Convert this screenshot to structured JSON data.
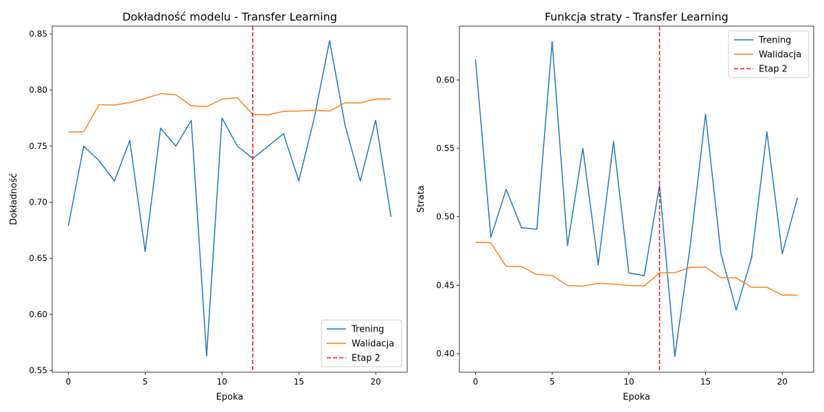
{
  "chart_data": [
    {
      "type": "line",
      "title": "Dokładność modelu - Transfer Learning",
      "xlabel": "Epoka",
      "ylabel": "Dokładność",
      "xlim": [
        -1.05,
        22.05
      ],
      "ylim": [
        0.5485,
        0.857
      ],
      "xticks": [
        0,
        5,
        10,
        15,
        20
      ],
      "yticks": [
        0.55,
        0.6,
        0.65,
        0.7,
        0.75,
        0.8,
        0.85
      ],
      "ytick_labels": [
        "0.55",
        "0.60",
        "0.65",
        "0.70",
        "0.75",
        "0.80",
        "0.85"
      ],
      "legend_position": "bottom-right",
      "x": [
        0,
        1,
        2,
        3,
        4,
        5,
        6,
        7,
        8,
        9,
        10,
        11,
        12,
        13,
        14,
        15,
        16,
        17,
        18,
        19,
        20,
        21
      ],
      "series": [
        {
          "name": "Trening",
          "color": "#1f77b4",
          "values": [
            0.679,
            0.75,
            0.737,
            0.719,
            0.755,
            0.656,
            0.766,
            0.75,
            0.773,
            0.563,
            0.775,
            0.75,
            0.739,
            0.75,
            0.761,
            0.719,
            0.775,
            0.844,
            0.769,
            0.719,
            0.773,
            0.687
          ]
        },
        {
          "name": "Walidacja",
          "color": "#ff7f0e",
          "values": [
            0.7625,
            0.7628,
            0.787,
            0.7866,
            0.7888,
            0.7925,
            0.7968,
            0.7958,
            0.786,
            0.7852,
            0.7918,
            0.7932,
            0.7782,
            0.7778,
            0.781,
            0.7813,
            0.782,
            0.7813,
            0.7885,
            0.7885,
            0.792,
            0.792
          ]
        }
      ],
      "vline": {
        "name": "Etap 2",
        "x": 12,
        "color": "#e41a1c",
        "style": "dashed"
      }
    },
    {
      "type": "line",
      "title": "Funkcja straty - Transfer Learning",
      "xlabel": "Epoka",
      "ylabel": "Strata",
      "xlim": [
        -1.05,
        22.05
      ],
      "ylim": [
        0.3865,
        0.6393
      ],
      "xticks": [
        0,
        5,
        10,
        15,
        20
      ],
      "yticks": [
        0.4,
        0.45,
        0.5,
        0.55,
        0.6
      ],
      "ytick_labels": [
        "0.40",
        "0.45",
        "0.50",
        "0.55",
        "0.60"
      ],
      "legend_position": "top-right",
      "x": [
        0,
        1,
        2,
        3,
        4,
        5,
        6,
        7,
        8,
        9,
        10,
        11,
        12,
        13,
        14,
        15,
        16,
        17,
        18,
        19,
        20,
        21
      ],
      "series": [
        {
          "name": "Trening",
          "color": "#1f77b4",
          "values": [
            0.615,
            0.485,
            0.52,
            0.492,
            0.491,
            0.628,
            0.479,
            0.55,
            0.465,
            0.555,
            0.459,
            0.457,
            0.523,
            0.398,
            0.479,
            0.575,
            0.473,
            0.432,
            0.47,
            0.562,
            0.473,
            0.514
          ]
        },
        {
          "name": "Walidacja",
          "color": "#ff7f0e",
          "values": [
            0.4815,
            0.481,
            0.4637,
            0.4637,
            0.4578,
            0.4572,
            0.4498,
            0.4493,
            0.4515,
            0.4508,
            0.4498,
            0.4495,
            0.459,
            0.4593,
            0.463,
            0.4633,
            0.4555,
            0.4553,
            0.4485,
            0.4485,
            0.4428,
            0.4428
          ]
        }
      ],
      "vline": {
        "name": "Etap 2",
        "x": 12,
        "color": "#e41a1c",
        "style": "dashed"
      }
    }
  ]
}
